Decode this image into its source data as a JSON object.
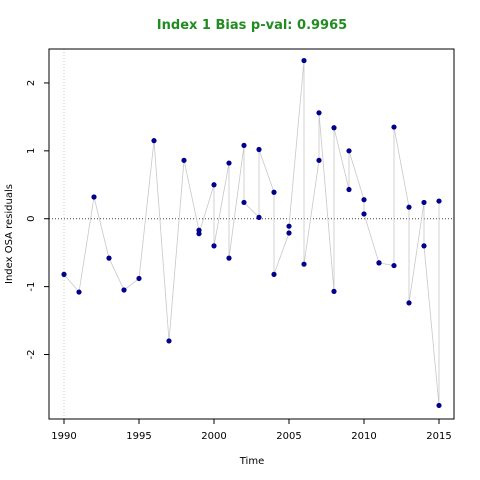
{
  "chart_data": {
    "type": "scatter",
    "title": "Index 1 Bias p-val: 0.9965",
    "xlabel": "Time",
    "ylabel": "Index OSA residuals",
    "xlim": [
      1989,
      2016
    ],
    "ylim": [
      -2.95,
      2.5
    ],
    "xticks": [
      1990,
      1995,
      2000,
      2005,
      2010,
      2015
    ],
    "yticks": [
      -2,
      -1,
      0,
      1,
      2
    ],
    "reference_line_y": 0,
    "reference_line_x": 1990,
    "colors": {
      "title": "#228B22",
      "points": "#00008B",
      "connector": "#c8c8c8",
      "refline": "#444444",
      "vref": "#c8c8c8"
    },
    "series": [
      {
        "x": [
          1990,
          1991,
          1992,
          1993,
          1994,
          1995,
          1996,
          1997,
          1998,
          1999,
          1999,
          2000,
          2000,
          2001,
          2001,
          2002,
          2002,
          2003,
          2003,
          2004,
          2004,
          2005,
          2005,
          2006,
          2006,
          2007,
          2007,
          2008,
          2008,
          2009,
          2009,
          2010,
          2010,
          2011,
          2011,
          2012,
          2012,
          2013,
          2013,
          2014,
          2014,
          2015,
          2015
        ],
        "y": [
          -0.82,
          -1.08,
          0.32,
          -0.58,
          -1.05,
          -0.88,
          1.15,
          -1.8,
          0.86,
          -0.17,
          -0.22,
          0.5,
          -0.4,
          0.82,
          -0.58,
          1.08,
          0.24,
          0.02,
          1.02,
          0.39,
          -0.82,
          -0.21,
          -0.11,
          2.33,
          -0.67,
          0.86,
          1.56,
          -1.07,
          1.34,
          0.43,
          1.0,
          0.28,
          0.07,
          -0.65,
          -0.65,
          -0.69,
          1.35,
          0.17,
          -1.24,
          0.24,
          -0.4,
          -2.75,
          0.26
        ]
      }
    ]
  }
}
